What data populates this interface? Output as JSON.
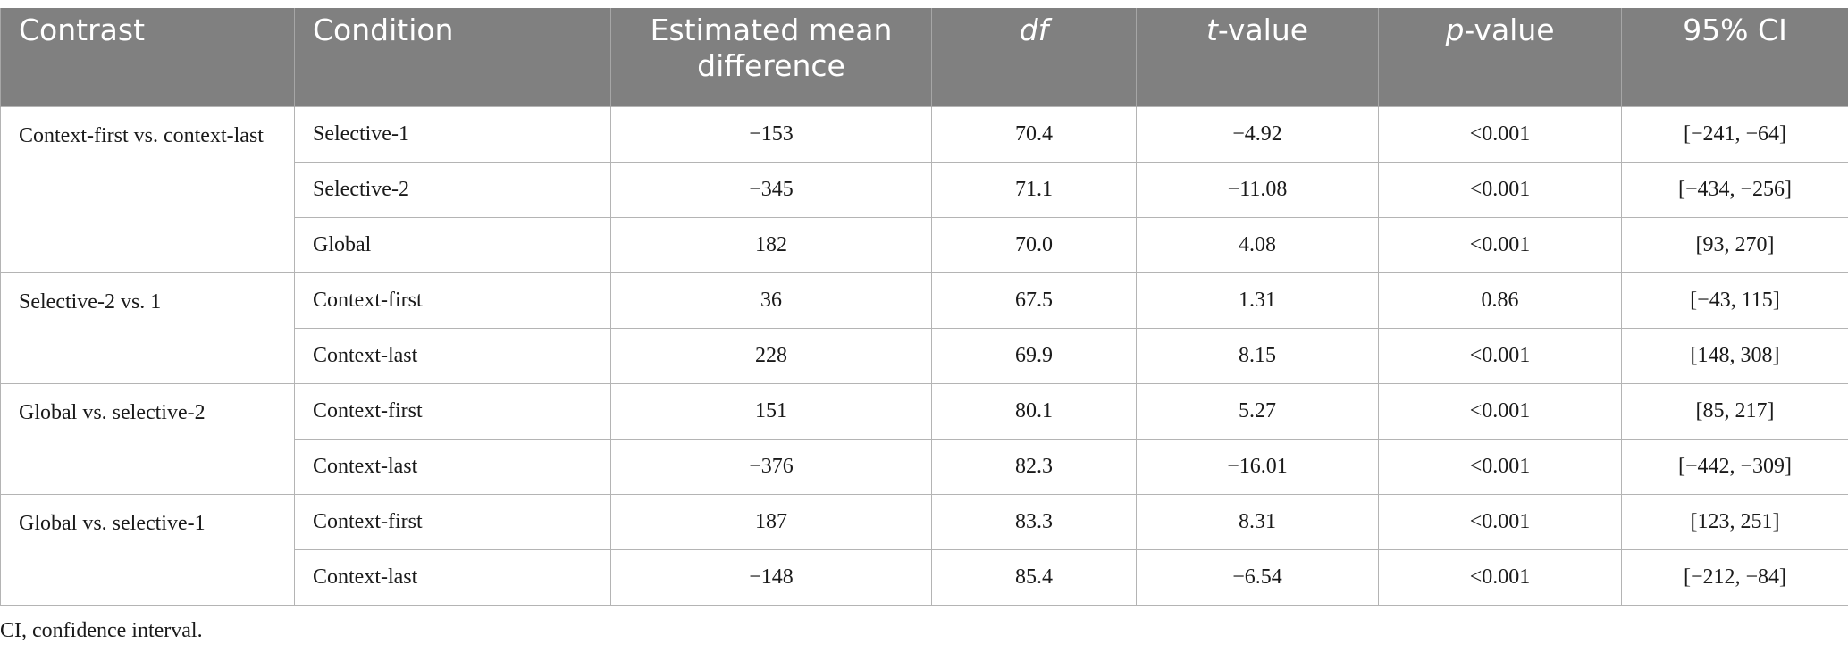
{
  "header": {
    "contrast": "Contrast",
    "condition": "Condition",
    "mean_difference": "Estimated mean difference",
    "df": "df",
    "t_italic": "t",
    "t_rest": "-value",
    "p_italic": "p",
    "p_rest": "-value",
    "ci": "95% CI"
  },
  "groups": [
    {
      "contrast": "Context-first vs. context-last",
      "rows": [
        {
          "condition": "Selective-1",
          "mean_diff": "−153",
          "df": "70.4",
          "t": "−4.92",
          "p": "<0.001",
          "ci": "[−241, −64]"
        },
        {
          "condition": "Selective-2",
          "mean_diff": "−345",
          "df": "71.1",
          "t": "−11.08",
          "p": "<0.001",
          "ci": "[−434, −256]"
        },
        {
          "condition": "Global",
          "mean_diff": "182",
          "df": "70.0",
          "t": "4.08",
          "p": "<0.001",
          "ci": "[93, 270]"
        }
      ]
    },
    {
      "contrast": "Selective-2 vs. 1",
      "rows": [
        {
          "condition": "Context-first",
          "mean_diff": "36",
          "df": "67.5",
          "t": "1.31",
          "p": "0.86",
          "ci": "[−43, 115]"
        },
        {
          "condition": "Context-last",
          "mean_diff": "228",
          "df": "69.9",
          "t": "8.15",
          "p": "<0.001",
          "ci": "[148, 308]"
        }
      ]
    },
    {
      "contrast": "Global vs. selective-2",
      "rows": [
        {
          "condition": "Context-first",
          "mean_diff": "151",
          "df": "80.1",
          "t": "5.27",
          "p": "<0.001",
          "ci": "[85, 217]"
        },
        {
          "condition": "Context-last",
          "mean_diff": "−376",
          "df": "82.3",
          "t": "−16.01",
          "p": "<0.001",
          "ci": "[−442, −309]"
        }
      ]
    },
    {
      "contrast": "Global vs. selective-1",
      "rows": [
        {
          "condition": "Context-first",
          "mean_diff": "187",
          "df": "83.3",
          "t": "8.31",
          "p": "<0.001",
          "ci": "[123, 251]"
        },
        {
          "condition": "Context-last",
          "mean_diff": "−148",
          "df": "85.4",
          "t": "−6.54",
          "p": "<0.001",
          "ci": "[−212, −84]"
        }
      ]
    }
  ],
  "footnote": "CI, confidence interval."
}
